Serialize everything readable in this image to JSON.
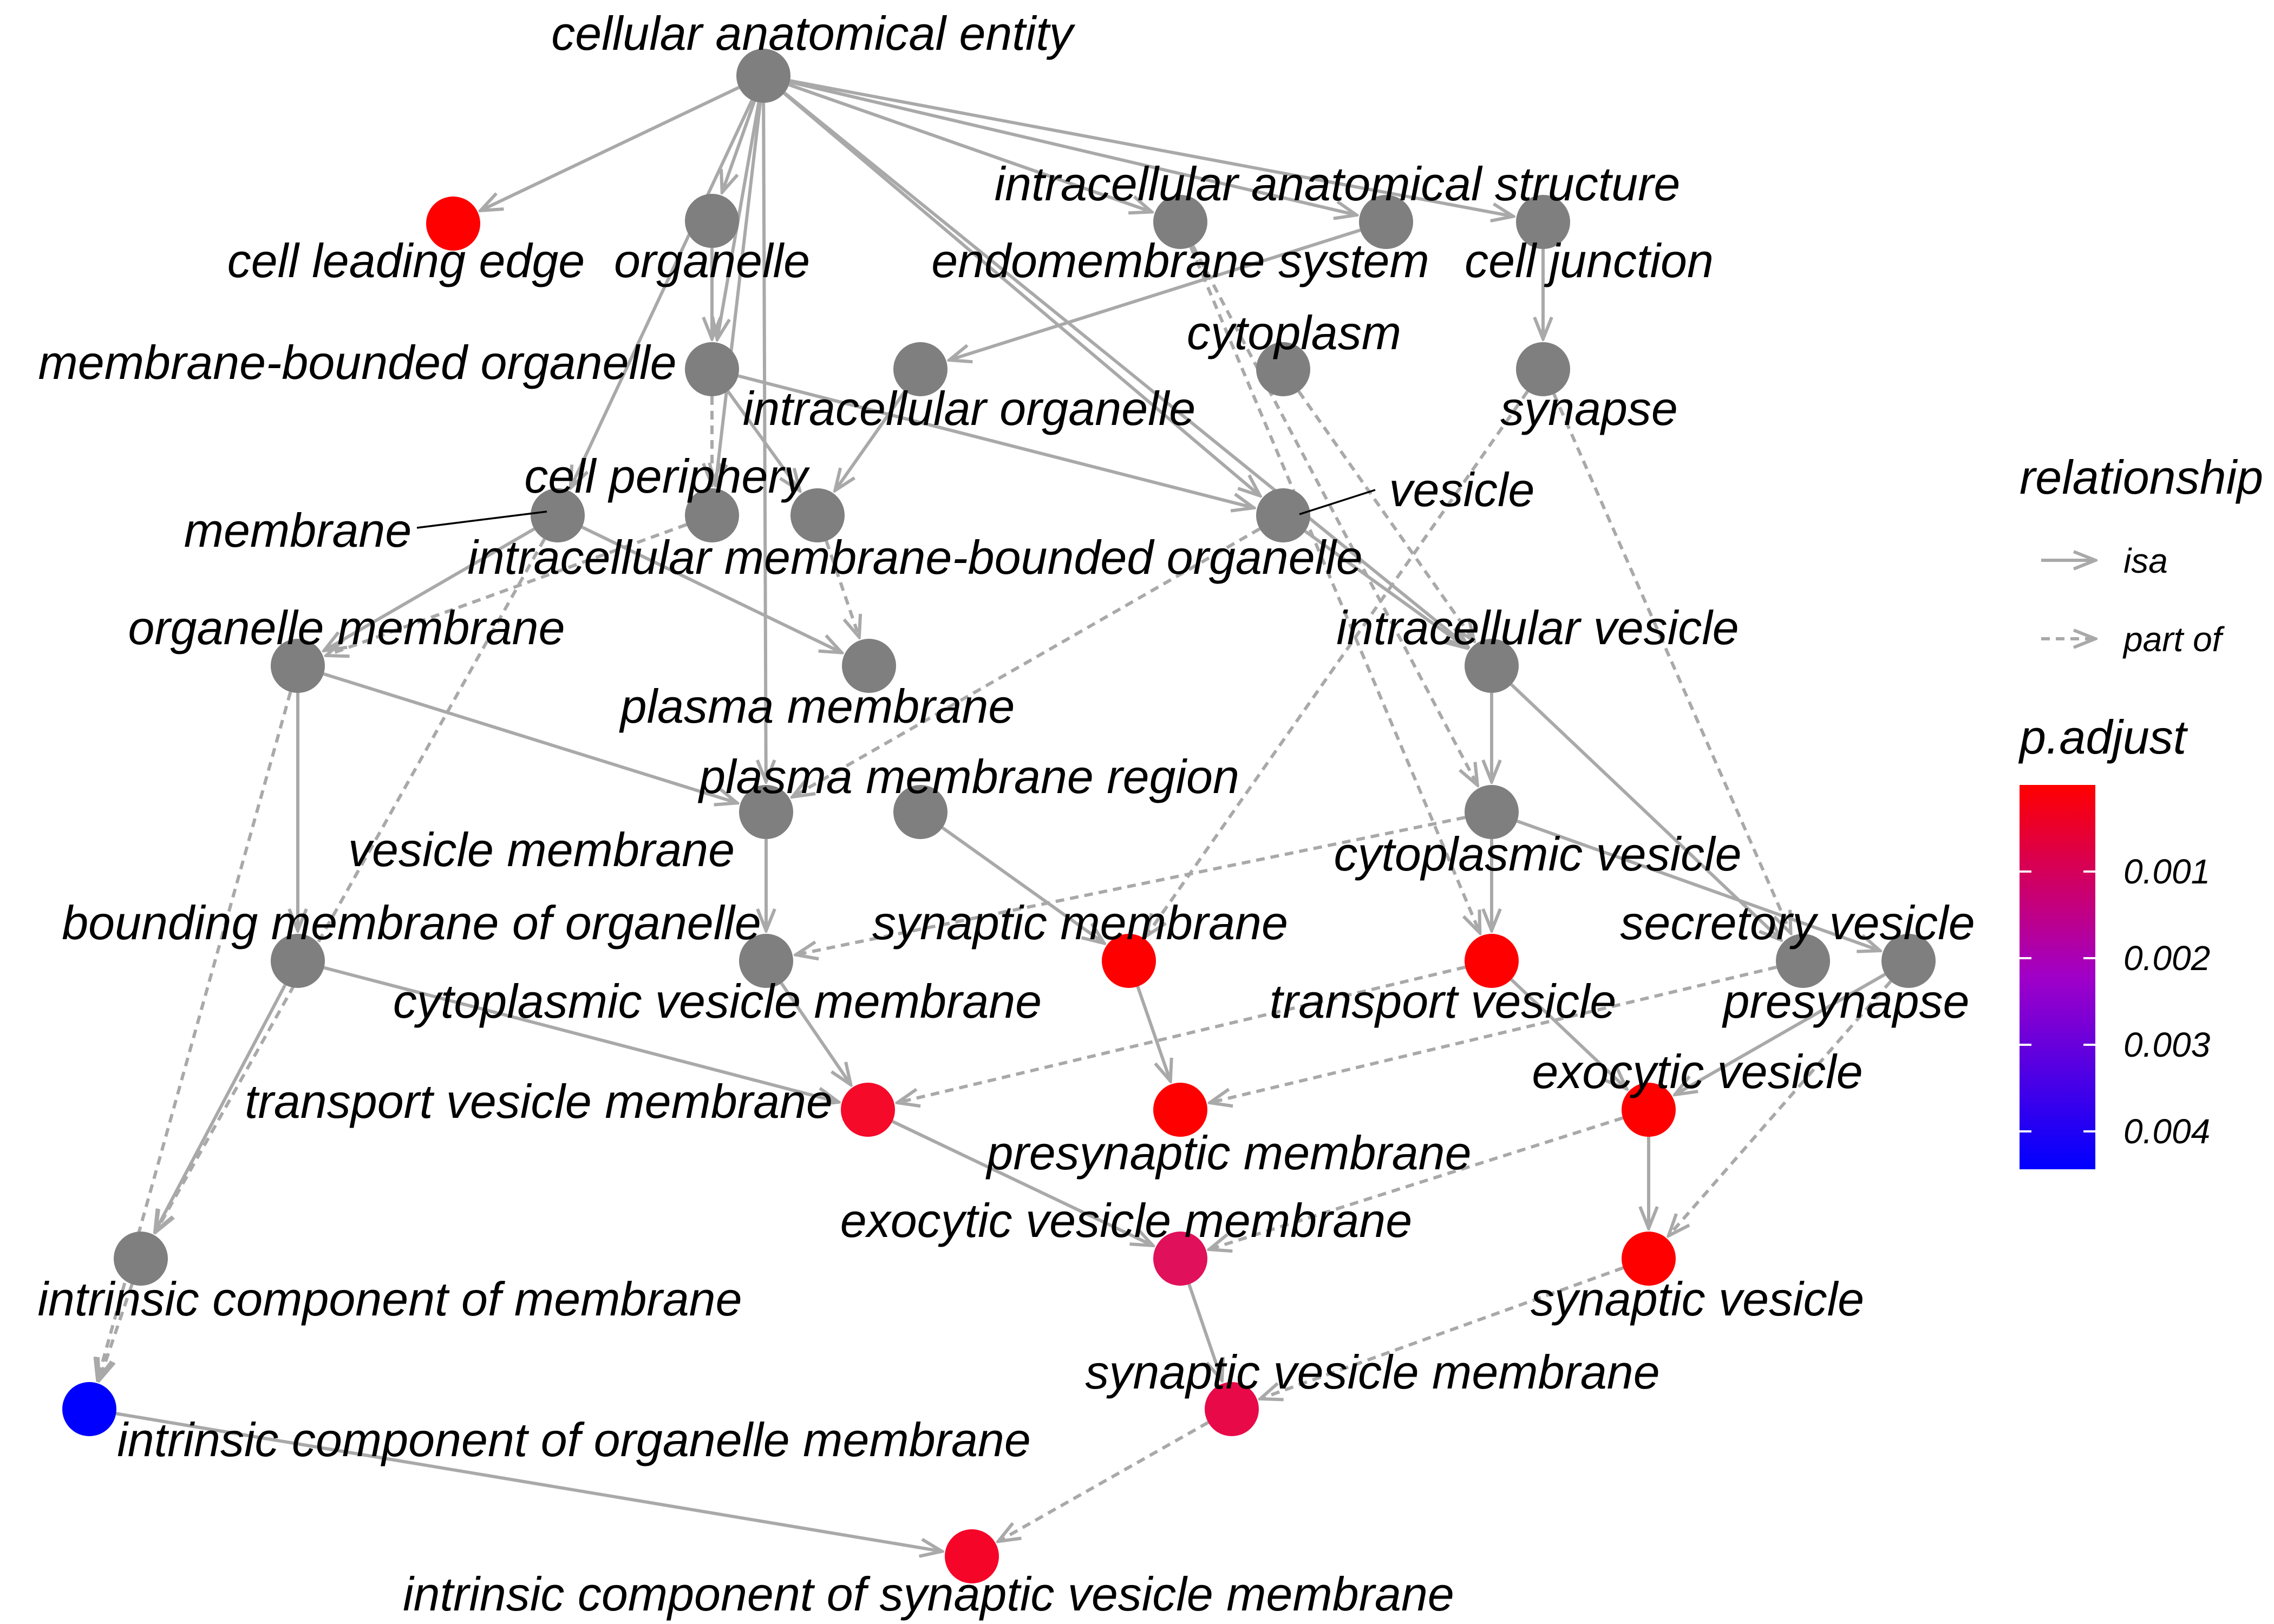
{
  "diagram": {
    "type": "go-dag",
    "nodes": [
      {
        "id": "cae",
        "label": "cellular anatomical entity",
        "color": "grey"
      },
      {
        "id": "cle",
        "label": "cell leading edge",
        "color": "#ff0000"
      },
      {
        "id": "org",
        "label": "organelle",
        "color": "grey"
      },
      {
        "id": "ias",
        "label": "intracellular anatomical structure",
        "color": "grey"
      },
      {
        "id": "ems",
        "label": "endomembrane system",
        "color": "grey"
      },
      {
        "id": "cj",
        "label": "cell junction",
        "color": "grey"
      },
      {
        "id": "mbo",
        "label": "membrane-bounded organelle",
        "color": "grey"
      },
      {
        "id": "io",
        "label": "intracellular organelle",
        "color": "grey"
      },
      {
        "id": "cyt",
        "label": "cytoplasm",
        "color": "grey"
      },
      {
        "id": "syn",
        "label": "synapse",
        "color": "grey"
      },
      {
        "id": "mem",
        "label": "membrane",
        "color": "grey"
      },
      {
        "id": "cp",
        "label": "cell periphery",
        "color": "grey"
      },
      {
        "id": "imbo",
        "label": "intracellular membrane-bounded organelle",
        "color": "grey"
      },
      {
        "id": "ves",
        "label": "vesicle",
        "color": "grey"
      },
      {
        "id": "om",
        "label": "organelle membrane",
        "color": "grey"
      },
      {
        "id": "pm",
        "label": "plasma membrane",
        "color": "grey"
      },
      {
        "id": "iv",
        "label": "intracellular vesicle",
        "color": "grey"
      },
      {
        "id": "vm",
        "label": "vesicle membrane",
        "color": "grey"
      },
      {
        "id": "pmr",
        "label": "plasma membrane region",
        "color": "grey"
      },
      {
        "id": "cv",
        "label": "cytoplasmic vesicle",
        "color": "grey"
      },
      {
        "id": "bmo",
        "label": "bounding membrane of organelle",
        "color": "grey"
      },
      {
        "id": "cvm",
        "label": "cytoplasmic vesicle membrane",
        "color": "grey"
      },
      {
        "id": "sm",
        "label": "synaptic membrane",
        "color": "#ff0000"
      },
      {
        "id": "tv",
        "label": "transport vesicle",
        "color": "#ff0000"
      },
      {
        "id": "sv",
        "label": "secretory vesicle",
        "color": "grey"
      },
      {
        "id": "pre",
        "label": "presynapse",
        "color": "grey"
      },
      {
        "id": "tvm",
        "label": "transport vesicle membrane",
        "color": "#f50a2a"
      },
      {
        "id": "prm",
        "label": "presynaptic membrane",
        "color": "#ff0000"
      },
      {
        "id": "ev",
        "label": "exocytic vesicle",
        "color": "#ff0000"
      },
      {
        "id": "evm",
        "label": "exocytic vesicle membrane",
        "color": "#e0105a"
      },
      {
        "id": "synv",
        "label": "synaptic vesicle",
        "color": "#ff0000"
      },
      {
        "id": "icm",
        "label": "intrinsic component of membrane",
        "color": "grey"
      },
      {
        "id": "svm",
        "label": "synaptic vesicle membrane",
        "color": "#e80a48"
      },
      {
        "id": "icom",
        "label": "intrinsic component of organelle membrane",
        "color": "#0000ff"
      },
      {
        "id": "icsvm",
        "label": "intrinsic component of synaptic vesicle membrane",
        "color": "#f50528"
      }
    ],
    "edges": [
      {
        "from": "cae",
        "to": "cle",
        "rel": "isa"
      },
      {
        "from": "cae",
        "to": "org",
        "rel": "isa"
      },
      {
        "from": "cae",
        "to": "ems",
        "rel": "isa"
      },
      {
        "from": "cae",
        "to": "ias",
        "rel": "isa"
      },
      {
        "from": "cae",
        "to": "cj",
        "rel": "isa"
      },
      {
        "from": "cae",
        "to": "mbo",
        "rel": "isa"
      },
      {
        "from": "cae",
        "to": "mem",
        "rel": "isa"
      },
      {
        "from": "cae",
        "to": "cp",
        "rel": "isa"
      },
      {
        "from": "cae",
        "to": "ves",
        "rel": "isa"
      },
      {
        "from": "cae",
        "to": "iv",
        "rel": "isa"
      },
      {
        "from": "cae",
        "to": "vm",
        "rel": "isa"
      },
      {
        "from": "org",
        "to": "mbo",
        "rel": "isa"
      },
      {
        "from": "ias",
        "to": "io",
        "rel": "isa"
      },
      {
        "from": "cj",
        "to": "syn",
        "rel": "isa"
      },
      {
        "from": "mbo",
        "to": "imbo",
        "rel": "isa"
      },
      {
        "from": "mbo",
        "to": "ves",
        "rel": "isa"
      },
      {
        "from": "io",
        "to": "imbo",
        "rel": "isa"
      },
      {
        "from": "mem",
        "to": "om",
        "rel": "isa"
      },
      {
        "from": "mem",
        "to": "pm",
        "rel": "isa"
      },
      {
        "from": "ves",
        "to": "iv",
        "rel": "isa"
      },
      {
        "from": "iv",
        "to": "cv",
        "rel": "isa"
      },
      {
        "from": "om",
        "to": "bmo",
        "rel": "isa"
      },
      {
        "from": "om",
        "to": "vm",
        "rel": "isa"
      },
      {
        "from": "vm",
        "to": "cvm",
        "rel": "isa"
      },
      {
        "from": "pmr",
        "to": "sm",
        "rel": "isa"
      },
      {
        "from": "cv",
        "to": "tv",
        "rel": "isa"
      },
      {
        "from": "cv",
        "to": "pre",
        "rel": "isa"
      },
      {
        "from": "iv",
        "to": "sv",
        "rel": "isa"
      },
      {
        "from": "bmo",
        "to": "tvm",
        "rel": "isa"
      },
      {
        "from": "cvm",
        "to": "tvm",
        "rel": "isa"
      },
      {
        "from": "sm",
        "to": "prm",
        "rel": "isa"
      },
      {
        "from": "tv",
        "to": "ev",
        "rel": "isa"
      },
      {
        "from": "pre",
        "to": "ev",
        "rel": "isa"
      },
      {
        "from": "tvm",
        "to": "evm",
        "rel": "isa"
      },
      {
        "from": "ev",
        "to": "synv",
        "rel": "isa"
      },
      {
        "from": "bmo",
        "to": "icm",
        "rel": "isa"
      },
      {
        "from": "evm",
        "to": "svm",
        "rel": "isa"
      },
      {
        "from": "icom",
        "to": "icsvm",
        "rel": "isa"
      },
      {
        "from": "mbo",
        "to": "cp",
        "rel": "part of"
      },
      {
        "from": "cp",
        "to": "om",
        "rel": "part of"
      },
      {
        "from": "imbo",
        "to": "pm",
        "rel": "part of"
      },
      {
        "from": "ems",
        "to": "cv",
        "rel": "part of"
      },
      {
        "from": "ems",
        "to": "tv",
        "rel": "part of"
      },
      {
        "from": "cyt",
        "to": "iv",
        "rel": "part of"
      },
      {
        "from": "syn",
        "to": "sm",
        "rel": "part of"
      },
      {
        "from": "syn",
        "to": "sv",
        "rel": "part of"
      },
      {
        "from": "ves",
        "to": "vm",
        "rel": "part of"
      },
      {
        "from": "cv",
        "to": "cvm",
        "rel": "part of"
      },
      {
        "from": "tv",
        "to": "tvm",
        "rel": "part of"
      },
      {
        "from": "sv",
        "to": "prm",
        "rel": "part of"
      },
      {
        "from": "ev",
        "to": "evm",
        "rel": "part of"
      },
      {
        "from": "pre",
        "to": "synv",
        "rel": "part of"
      },
      {
        "from": "synv",
        "to": "svm",
        "rel": "part of"
      },
      {
        "from": "svm",
        "to": "icsvm",
        "rel": "part of"
      },
      {
        "from": "om",
        "to": "icom",
        "rel": "part of"
      },
      {
        "from": "mem",
        "to": "icm",
        "rel": "part of"
      },
      {
        "from": "icm",
        "to": "icom",
        "rel": "part of"
      }
    ]
  },
  "legend": {
    "relationship_title": "relationship",
    "items": [
      {
        "label": "isa",
        "style": "solid"
      },
      {
        "label": "part of",
        "style": "dashed"
      }
    ],
    "color_title": "p.adjust",
    "color_scale": {
      "high": "#ff0000",
      "mid": "#a000c8",
      "low": "#0000ff"
    },
    "ticks": [
      "0.001",
      "0.002",
      "0.003",
      "0.004"
    ]
  },
  "colors": {
    "edge": "#a9a9a9",
    "node_default": "grey"
  }
}
